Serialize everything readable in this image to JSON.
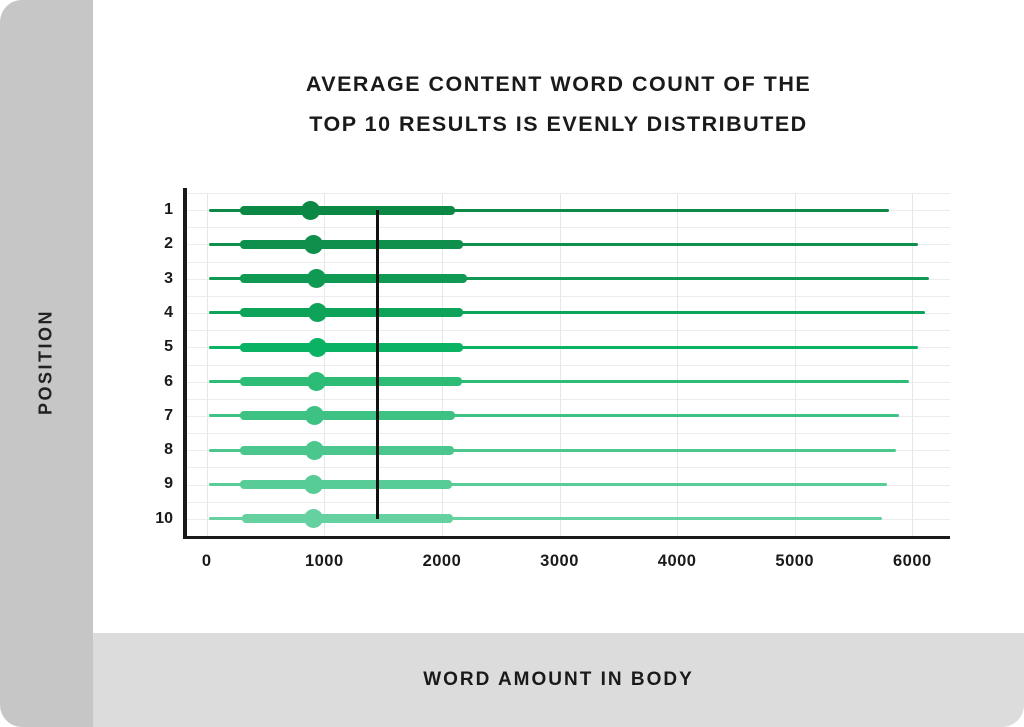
{
  "title": {
    "line1": "AVERAGE CONTENT WORD COUNT OF THE",
    "line2": "TOP 10 RESULTS IS EVENLY DISTRIBUTED"
  },
  "chart_data": {
    "type": "boxplot",
    "orientation": "horizontal",
    "title": "AVERAGE CONTENT WORD COUNT OF THE TOP 10 RESULTS IS EVENLY DISTRIBUTED",
    "xlabel": "WORD AMOUNT IN BODY",
    "ylabel": "POSITION",
    "x_ticks": [
      "0",
      "1000",
      "2000",
      "3000",
      "4000",
      "5000",
      "6000"
    ],
    "x_tick_values": [
      0,
      1000,
      2000,
      3000,
      4000,
      5000,
      6000
    ],
    "xlim": [
      0,
      6320
    ],
    "grid": true,
    "legend": false,
    "mean_line_x": 1450,
    "y_categories": [
      "1",
      "2",
      "3",
      "4",
      "5",
      "6",
      "7",
      "8",
      "9",
      "10"
    ],
    "rows": [
      {
        "position": "1",
        "min": 20,
        "q1": 280,
        "median": 885,
        "q3": 2110,
        "max": 5800,
        "color": "#0c8845"
      },
      {
        "position": "2",
        "min": 20,
        "q1": 280,
        "median": 910,
        "q3": 2180,
        "max": 6045,
        "color": "#0e8f4b"
      },
      {
        "position": "3",
        "min": 20,
        "q1": 280,
        "median": 935,
        "q3": 2210,
        "max": 6140,
        "color": "#0f9952"
      },
      {
        "position": "4",
        "min": 20,
        "q1": 280,
        "median": 940,
        "q3": 2180,
        "max": 6110,
        "color": "#0da45a"
      },
      {
        "position": "5",
        "min": 20,
        "q1": 280,
        "median": 940,
        "q3": 2180,
        "max": 6050,
        "color": "#0ab364"
      },
      {
        "position": "6",
        "min": 20,
        "q1": 280,
        "median": 930,
        "q3": 2170,
        "max": 5975,
        "color": "#2dbc76"
      },
      {
        "position": "7",
        "min": 20,
        "q1": 280,
        "median": 920,
        "q3": 2110,
        "max": 5885,
        "color": "#3ec283"
      },
      {
        "position": "8",
        "min": 20,
        "q1": 280,
        "median": 915,
        "q3": 2100,
        "max": 5860,
        "color": "#4bc78d"
      },
      {
        "position": "9",
        "min": 20,
        "q1": 280,
        "median": 910,
        "q3": 2085,
        "max": 5785,
        "color": "#57cc96"
      },
      {
        "position": "10",
        "min": 20,
        "q1": 300,
        "median": 905,
        "q3": 2095,
        "max": 5745,
        "color": "#66d1a0"
      }
    ]
  },
  "colors": {
    "sidebar": "#c6c6c6",
    "bottom_band": "#dcdcdc",
    "axis": "#1a1a1a",
    "grid": "#ececec",
    "mean_line": "#111111",
    "text": "#1a1a1a"
  }
}
